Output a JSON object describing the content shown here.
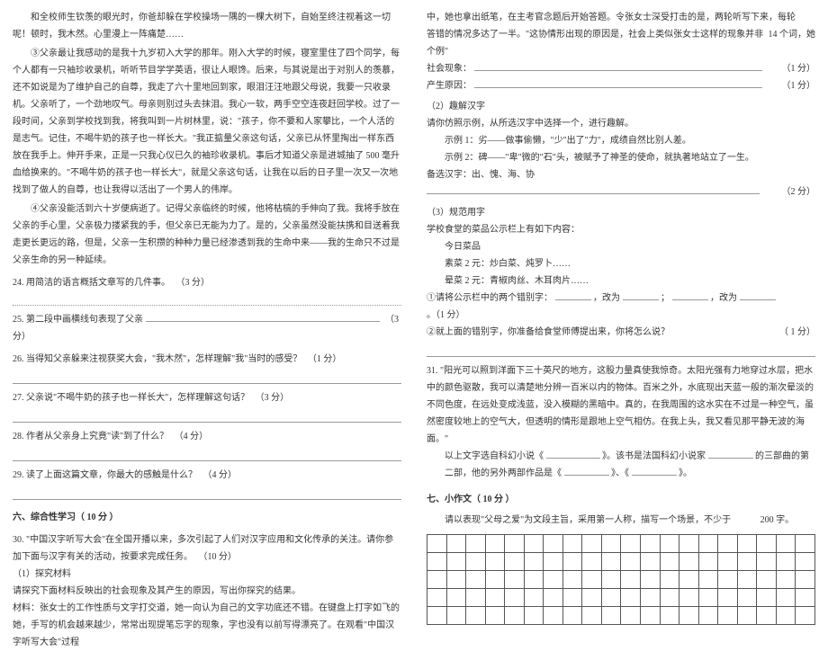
{
  "left": {
    "p1": "和全校师生钦羡的眼光时，你爸却躲在学校操场一隅的一棵大树下，自始至终注视着这一切呢！顿时，我木然。心里漫上一阵痛楚……",
    "p2": "③父亲最让我感动的是我十九岁初入大学的那年。刚入大学的时候，寝室里住了四个同学，每个人都有一只袖珍收录机，听听节目学学英语，很让人眼馋。后来，与其说是出于对别人的羡慕，还不如说是为了维护自己的自尊，我走了六十里地回到家，眼泪汪汪地跟父母说，我要一只收录机。父亲听了，一个劲地叹气。母亲则别过头去抹泪。我心一软，两手空空连夜赶回学校。过了一段时间，父亲到学校找到我，将我叫到一片树林里，说：\"孩子，你不要和人家攀比，一个人活的是志气。记住，不喝牛奶的孩子也一样长大。\"我正掂量父亲这句话，父亲已从怀里掏出一样东西放在我手上。伸开手来，正是一只我心仪已久的袖珍收录机。事后才知道父亲是进城抽了 500 毫升血给换来的。\"不喝牛奶的孩子也一样长大\"，就是父亲这句话，让我在以后的日子里一次又一次地找到了做人的自尊，也让我得以活出了一个男人的伟岸。",
    "p3": "④父亲没能活到六十岁便病逝了。记得父亲临终的时候，他将枯槁的手伸向了我。我将手放在父亲的手心里，父亲极力搂紧我的手，但父亲已无能为力了。是的，父亲虽然没能扶携和目送着我走更长更远的路，但是，父亲一生积攒的种种力量已经渗透到我的生命中来——我的生命只不过是父亲生命的另一种延续。",
    "q24": "24. 用简洁的语言概括文章写的几件事。",
    "q24_score": "（3 分）",
    "q25": "25. 第二段中画横线句表现了父亲",
    "q25_score": "（3 分）",
    "q26": "26. 当得知父亲躲来注视获奖大会，\"我木然\"，怎样理解\"我\"当时的感受？",
    "q26_score": "（1 分）",
    "q27": "27. 父亲说\"不喝牛奶的孩子也一样长大\"，怎样理解这句话？",
    "q27_score": "（3 分）",
    "q28": "28. 作者从父亲身上究竟\"读\"到了什么？",
    "q28_score": "（4 分）",
    "q29": "29. 读了上面这篇文章，你最大的感触是什么？",
    "q29_score": "（4 分）",
    "sec6": "六、综合性学习（ 10 分 ）",
    "q30": "30. \"中国汉字听写大会\"在全国开播以来，多次引起了人们对汉字应用和文化传承的关注。请你参加下面与汉字有关的活动，按要求完成任务。",
    "q30_score": "（10 分）",
    "sub1_title": "（1）探究材料",
    "sub1_text": "请探究下面材料反映出的社会现象及其产生的原因，写出你探究的结果。",
    "material": "材料：张女士的工作性质与文字打交道，她一向认为自己的文字功底还不错。在键盘上打字如飞的她，手写的机会越来越少，常常出现提笔忘字的现象，字也没有以前写得漂亮了。在观看\"中国汉字听写大会\"过程"
  },
  "right": {
    "p_cont": "中，她也拿出纸笔，在主考官念题后开始答题。令张女士深受打击的是，两轮听写下来，每轮",
    "p_cont2": "14 个词，她",
    "p_cont3": "答错的情况多达了一半。\"这协情形出现的原因是，社会上类似张女士这样的现象并非个例\"",
    "social_label": "社会现象：",
    "social_score": "（1 分）",
    "reason_label": "产生原因：",
    "reason_score": "（1 分）",
    "sub2_title": "（2）趣解汉字",
    "sub2_text": "请你仿照示例，从所选汉字中选择一个，进行趣解。",
    "ex1": "示例 1：劣——做事偷懒，\"少\"出了\"力\"，成绩自然比别人差。",
    "ex2": "示例 2：碑——\"卑\"微的\"石\"头，被赋予了神圣的使命，就执著地站立了一生。",
    "choices": "备选汉字：出、愧、海、协",
    "sub2_score": "（2 分）",
    "sub3_title": "（3）规范用字",
    "sub3_text": "学校食堂的菜品公示栏上有如下内容：",
    "menu_title": "今日菜品",
    "menu1": "素菜  2 元：炒白菜、炖罗卜……",
    "menu2": "晕菜  2 元：青椒肉丝、木耳肉片……",
    "fix1a": "①请将公示栏中的两个错别字：",
    "fix1b": "，改为",
    "fix1c": "；",
    "fix1d": "，改为",
    "fix1e": "。（1 分）",
    "fix2a": "②就上面的错别字，你准备给食堂师傅提出来，你将怎么说？",
    "fix2_score": "（    1 分）",
    "q31_a": "31. \"阳光可以照到洋面下三十英尺的地方，这股力量真使我惊奇。太阳光强有力地穿过水层，把水中的颜色驱散，我可以清楚地分辨一百米以内的物体。百米之外，水底现出天蓝一般的渐次晕淡的不同色度，在远处变成浅蓝，没入模糊的黑暗中。真的，在我周围的这水实在不过是一种空气，虽然密度较地上的空气大，但透明的情形是跟地上空气相仿。在我上头，我又看见那平静无波的海面。\"",
    "q31_b": "以上文字选自科幻小说《",
    "q31_c": "》。该书是法国科幻小说家",
    "q31_d": "的三部曲的第二部，他的另外两部作品是《",
    "q31_e": "》、《",
    "q31_f": "》。",
    "sec7": "七、小作文（ 10 分 ）",
    "sec7_text": "请以表现\"父母之爱\"为文段主旨，采用第一人称，描写一个场景，不少于",
    "sec7_count": "200 字。"
  },
  "grid": {
    "rows": 5,
    "cols": 20
  },
  "colors": {
    "text": "#333333",
    "border": "#555555",
    "line": "#999999",
    "bg": "#ffffff"
  }
}
